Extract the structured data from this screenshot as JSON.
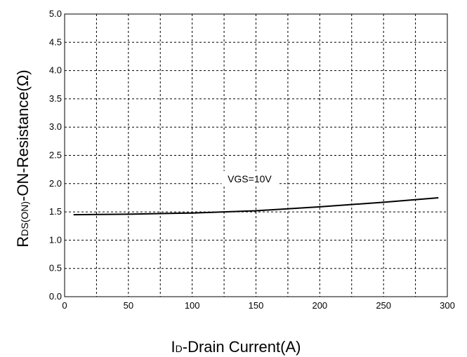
{
  "chart_data": {
    "type": "line",
    "title": "",
    "xlabel": {
      "main": "I",
      "sub": "D",
      "rest": "-Drain Current(A)"
    },
    "ylabel": {
      "main": "R",
      "sub": "DS(ON)",
      "rest": "-ON-Resistance(Ω)"
    },
    "xlim": [
      0,
      300
    ],
    "ylim": [
      0,
      5
    ],
    "x_ticks": [
      "0",
      "50",
      "100",
      "150",
      "200",
      "250",
      "300"
    ],
    "x_tick_values": [
      0,
      50,
      100,
      150,
      200,
      250,
      300
    ],
    "y_ticks": [
      "0.0",
      "0.5",
      "1.0",
      "1.5",
      "2.0",
      "2.5",
      "3.0",
      "3.5",
      "4.0",
      "4.5",
      "5.0"
    ],
    "y_tick_values": [
      0,
      0.5,
      1.0,
      1.5,
      2.0,
      2.5,
      3.0,
      3.5,
      4.0,
      4.5,
      5.0
    ],
    "x_grid_step": 25,
    "y_grid_step": 0.5,
    "grid": true,
    "series": [
      {
        "x": [
          7,
          50,
          100,
          150,
          200,
          250,
          293
        ],
        "values": [
          1.45,
          1.46,
          1.48,
          1.52,
          1.59,
          1.67,
          1.75
        ]
      }
    ],
    "annotations": [
      {
        "text": "VGS=10V",
        "x": 145,
        "y": 2.0
      }
    ]
  }
}
